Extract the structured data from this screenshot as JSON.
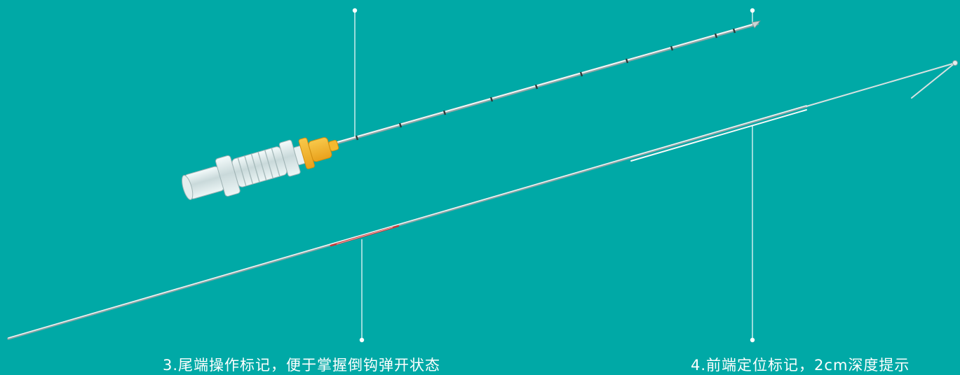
{
  "colors": {
    "background": "#00a9a6",
    "callout": "#ffffff",
    "hub_cap": "#f4b125",
    "needle": "#dfe6e6",
    "scale_mark": "#2c3a3a",
    "red_marker": "#c83a3a"
  },
  "icons": [
    "needle-icon",
    "hook-wire-icon",
    "hub-icon"
  ],
  "callouts": [
    {
      "id": "3",
      "text": "3.尾端操作标记，便于掌握倒钩弹开状态"
    },
    {
      "id": "4",
      "text": "4.前端定位标记，2cm深度提示"
    }
  ]
}
